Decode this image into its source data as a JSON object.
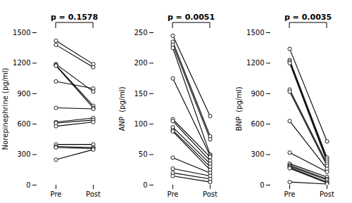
{
  "chart_data": [
    {
      "type": "line",
      "ylabel": "Norepinephrine (pg/ml)",
      "annotation": "p = 0.1578",
      "categories": [
        "Pre",
        "Post"
      ],
      "series": [
        {
          "values": [
            1420,
            1190
          ]
        },
        {
          "values": [
            1380,
            1160
          ]
        },
        {
          "values": [
            1020,
            950
          ]
        },
        {
          "values": [
            1190,
            920
          ]
        },
        {
          "values": [
            1180,
            780
          ]
        },
        {
          "values": [
            1175,
            760
          ]
        },
        {
          "values": [
            760,
            750
          ]
        },
        {
          "values": [
            620,
            660
          ]
        },
        {
          "values": [
            610,
            640
          ]
        },
        {
          "values": [
            580,
            620
          ]
        },
        {
          "values": [
            400,
            400
          ]
        },
        {
          "values": [
            380,
            370
          ]
        },
        {
          "values": [
            370,
            360
          ]
        },
        {
          "values": [
            250,
            350
          ]
        }
      ],
      "color": "black",
      "marker": "circle",
      "ylim": [
        0,
        1500
      ],
      "yticks": [
        0,
        300,
        600,
        900,
        1200,
        1500
      ],
      "grid": false
    },
    {
      "type": "line",
      "ylabel": "ANP  (pg/ml)",
      "annotation": "p = 0.0051",
      "categories": [
        "Pre",
        "Post"
      ],
      "series": [
        {
          "values": [
            245,
            113
          ]
        },
        {
          "values": [
            235,
            80
          ]
        },
        {
          "values": [
            230,
            75
          ]
        },
        {
          "values": [
            225,
            50
          ]
        },
        {
          "values": [
            175,
            48
          ]
        },
        {
          "values": [
            108,
            46
          ]
        },
        {
          "values": [
            105,
            40
          ]
        },
        {
          "values": [
            95,
            35
          ]
        },
        {
          "values": [
            90,
            30
          ]
        },
        {
          "values": [
            88,
            25
          ]
        },
        {
          "values": [
            45,
            20
          ]
        },
        {
          "values": [
            27,
            15
          ]
        },
        {
          "values": [
            20,
            10
          ]
        },
        {
          "values": [
            15,
            5
          ]
        }
      ],
      "color": "black",
      "marker": "circle",
      "ylim": [
        0,
        250
      ],
      "yticks": [
        0,
        50,
        100,
        150,
        200,
        250
      ],
      "grid": false
    },
    {
      "type": "line",
      "ylabel": "BNP  (pg/ml)",
      "annotation": "p = 0.0035",
      "categories": [
        "Pre",
        "Post"
      ],
      "series": [
        {
          "values": [
            1340,
            430
          ]
        },
        {
          "values": [
            1230,
            270
          ]
        },
        {
          "values": [
            1215,
            250
          ]
        },
        {
          "values": [
            1200,
            230
          ]
        },
        {
          "values": [
            940,
            210
          ]
        },
        {
          "values": [
            920,
            190
          ]
        },
        {
          "values": [
            630,
            160
          ]
        },
        {
          "values": [
            320,
            130
          ]
        },
        {
          "values": [
            210,
            80
          ]
        },
        {
          "values": [
            195,
            60
          ]
        },
        {
          "values": [
            185,
            50
          ]
        },
        {
          "values": [
            175,
            30
          ]
        },
        {
          "values": [
            165,
            20
          ]
        },
        {
          "values": [
            30,
            10
          ]
        }
      ],
      "color": "black",
      "marker": "circle",
      "ylim": [
        0,
        1500
      ],
      "yticks": [
        0,
        300,
        600,
        900,
        1200,
        1500
      ],
      "grid": false
    }
  ]
}
